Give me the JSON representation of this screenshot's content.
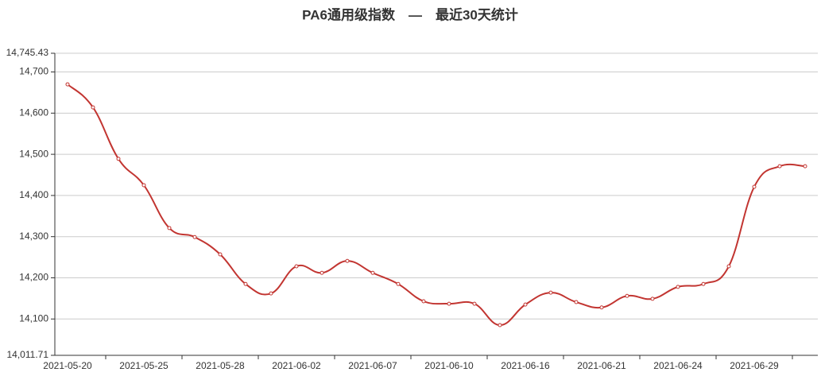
{
  "chart_data": {
    "type": "line",
    "title": "PA6通用级指数　—　最近30天统计",
    "categories": [
      "2021-05-20",
      null,
      null,
      "2021-05-25",
      null,
      null,
      "2021-05-28",
      null,
      null,
      "2021-06-02",
      null,
      null,
      "2021-06-07",
      null,
      null,
      "2021-06-10",
      null,
      null,
      "2021-06-16",
      null,
      null,
      "2021-06-21",
      null,
      null,
      "2021-06-24",
      null,
      null,
      "2021-06-29",
      null,
      null
    ],
    "values": [
      14670,
      14614,
      14489,
      14425,
      14321,
      14299,
      14257,
      14185,
      14162,
      14228,
      14212,
      14241,
      14212,
      14185,
      14143,
      14137,
      14137,
      14085,
      14135,
      14164,
      14141,
      14128,
      14156,
      14149,
      14178,
      14185,
      14228,
      14421,
      14471,
      14471
    ],
    "color": "#c23531",
    "ylim": [
      14011.71,
      14745.43
    ],
    "yticks": [
      {
        "value": 14011.71,
        "label": "14,011.71"
      },
      {
        "value": 14100,
        "label": "14,100"
      },
      {
        "value": 14200,
        "label": "14,200"
      },
      {
        "value": 14300,
        "label": "14,300"
      },
      {
        "value": 14400,
        "label": "14,400"
      },
      {
        "value": 14500,
        "label": "14,500"
      },
      {
        "value": 14600,
        "label": "14,600"
      },
      {
        "value": 14700,
        "label": "14,700"
      },
      {
        "value": 14745.43,
        "label": "14,745.43"
      }
    ],
    "grid": true
  }
}
